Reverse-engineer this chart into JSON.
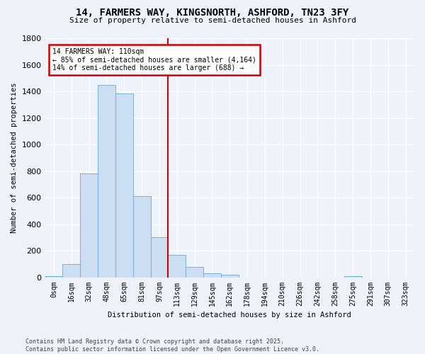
{
  "title": "14, FARMERS WAY, KINGSNORTH, ASHFORD, TN23 3FY",
  "subtitle": "Size of property relative to semi-detached houses in Ashford",
  "xlabel": "Distribution of semi-detached houses by size in Ashford",
  "ylabel": "Number of semi-detached properties",
  "bar_color": "#ccdff2",
  "bar_edge_color": "#7ab0d4",
  "categories": [
    "0sqm",
    "16sqm",
    "32sqm",
    "48sqm",
    "65sqm",
    "81sqm",
    "97sqm",
    "113sqm",
    "129sqm",
    "145sqm",
    "162sqm",
    "178sqm",
    "194sqm",
    "210sqm",
    "226sqm",
    "242sqm",
    "258sqm",
    "275sqm",
    "291sqm",
    "307sqm",
    "323sqm"
  ],
  "values": [
    10,
    100,
    780,
    1450,
    1385,
    610,
    300,
    170,
    80,
    28,
    20,
    0,
    0,
    0,
    0,
    0,
    0,
    10,
    0,
    0,
    0
  ],
  "ylim": [
    0,
    1800
  ],
  "yticks": [
    0,
    200,
    400,
    600,
    800,
    1000,
    1200,
    1400,
    1600,
    1800
  ],
  "annotation_text": "14 FARMERS WAY: 110sqm\n← 85% of semi-detached houses are smaller (4,164)\n14% of semi-detached houses are larger (688) →",
  "annotation_box_facecolor": "#ffffff",
  "annotation_box_edgecolor": "#cc0000",
  "vline_color": "#cc0000",
  "background_color": "#eef2fb",
  "grid_color": "#ffffff",
  "footer_text": "Contains HM Land Registry data © Crown copyright and database right 2025.\nContains public sector information licensed under the Open Government Licence v3.0."
}
